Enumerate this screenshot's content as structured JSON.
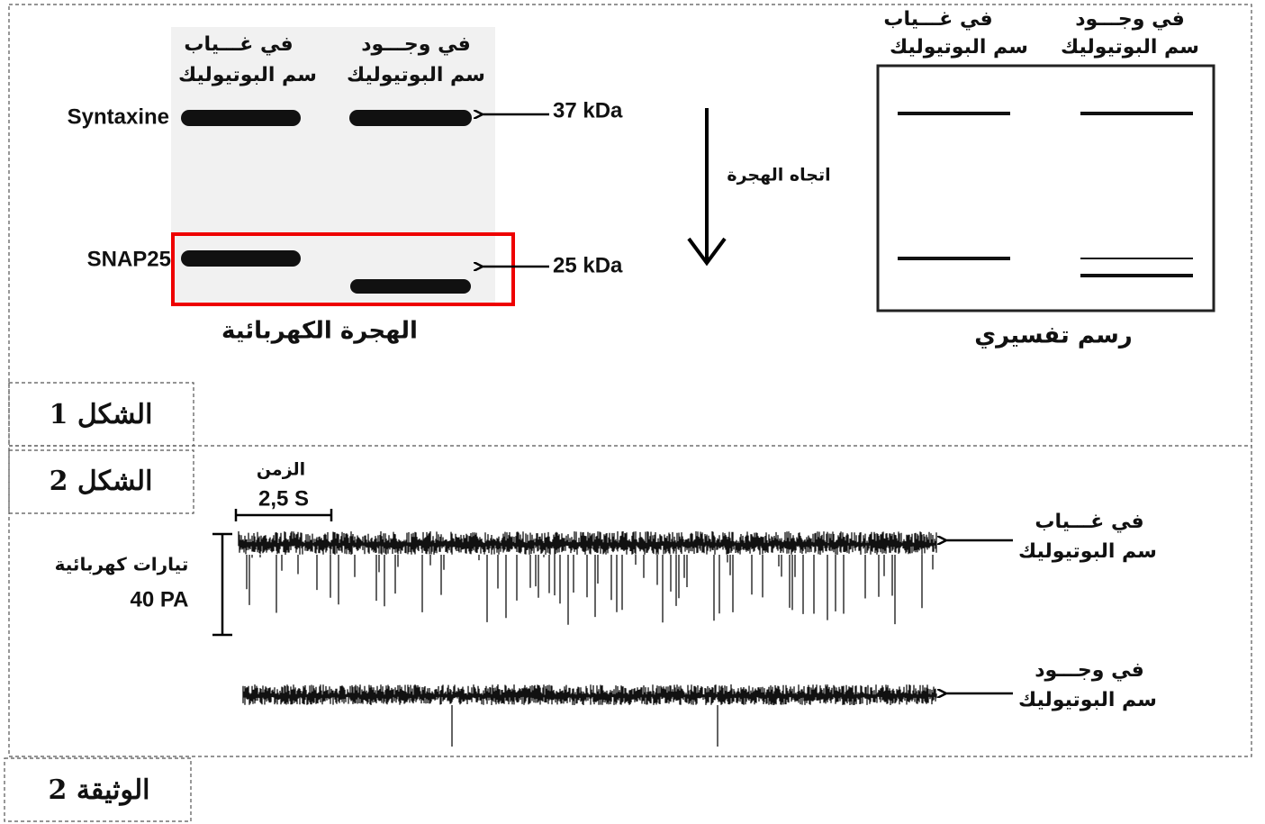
{
  "figure_1": {
    "label": "الشكل 1",
    "gel": {
      "title": "الهجرة الكهربائية",
      "columns": [
        {
          "line1": "في غـــياب",
          "line2": "سم البوتيوليك"
        },
        {
          "line1": "في وجـــود",
          "line2": "سم البوتيوليك"
        }
      ],
      "proteins": [
        "Syntaxine",
        "SNAP25"
      ],
      "markers": [
        "37 kDa",
        "25 kDa"
      ]
    },
    "migration_direction": "اتجاه الهجرة",
    "schematic": {
      "title": "رسم تفسيري",
      "columns": [
        {
          "line1": "في غـــياب",
          "line2": "سم البوتيوليك"
        },
        {
          "line1": "في وجـــود",
          "line2": "سم البوتيوليك"
        }
      ]
    }
  },
  "figure_2": {
    "label": "الشكل 2",
    "time_scale": {
      "label": "الزمن",
      "value": "2,5 S"
    },
    "current_scale": {
      "label": "تيارات كهربائية",
      "value": "40 PA"
    },
    "traces": [
      {
        "line1": "في غـــياب",
        "line2": "سم البوتيوليك"
      },
      {
        "line1": "في وجـــود",
        "line2": "سم البوتيوليك"
      }
    ]
  },
  "document_label": "الوثيقة 2"
}
